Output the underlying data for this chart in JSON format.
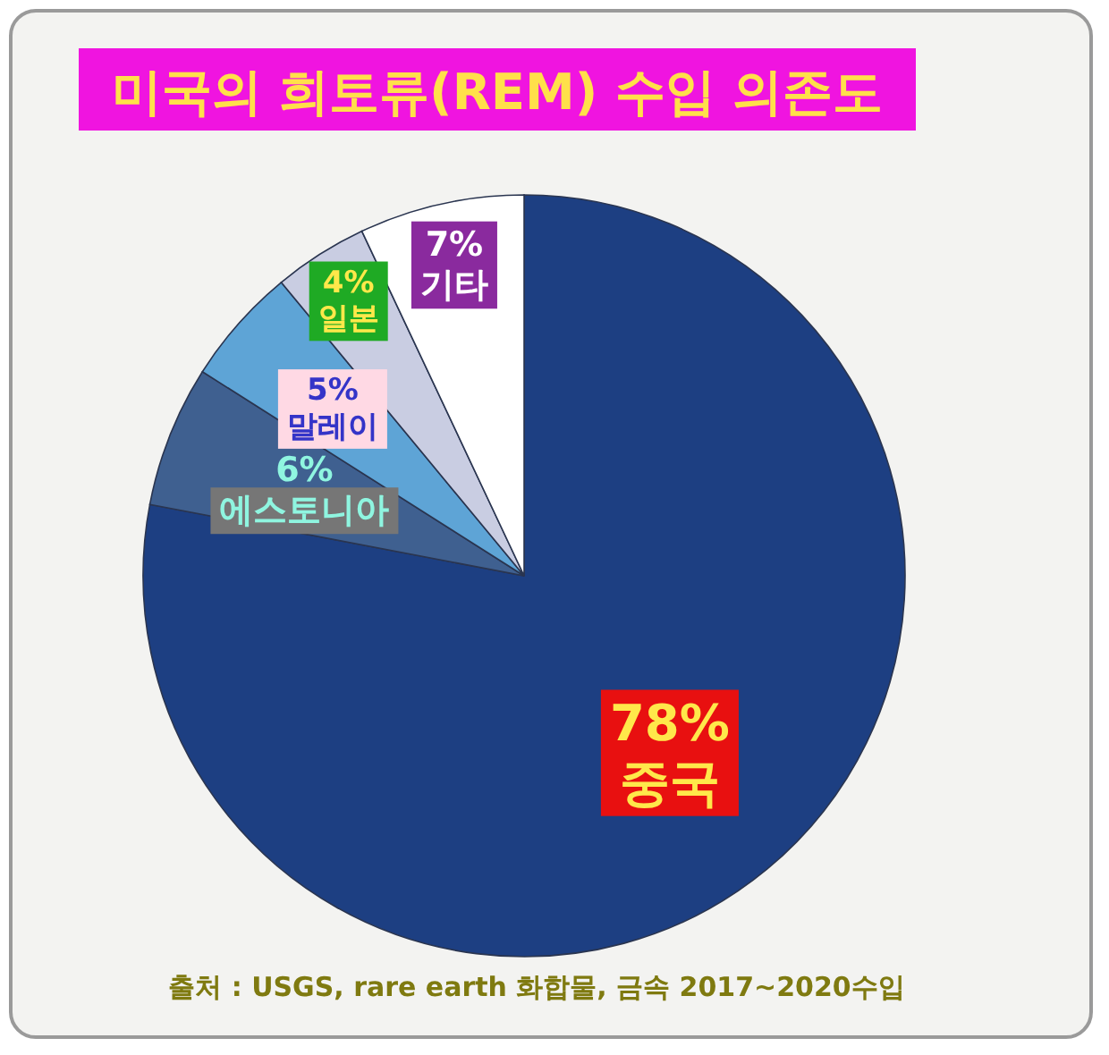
{
  "chart_data": {
    "type": "pie",
    "title": "미국의 희토류(REM) 수입 의존도",
    "categories": [
      "중국",
      "에스토니아",
      "말레이",
      "일본",
      "기타"
    ],
    "values": [
      78,
      6,
      5,
      4,
      7
    ],
    "value_labels": [
      "78%",
      "6%",
      "5%",
      "4%",
      "7%"
    ],
    "colors": [
      "#1d3f82",
      "#3f6090",
      "#5ea4d6",
      "#c9cde2",
      "#ffffff"
    ],
    "annotations": [
      "출처 : USGS, rare earth 화합물, 금속 2017~2020수입"
    ]
  }
}
